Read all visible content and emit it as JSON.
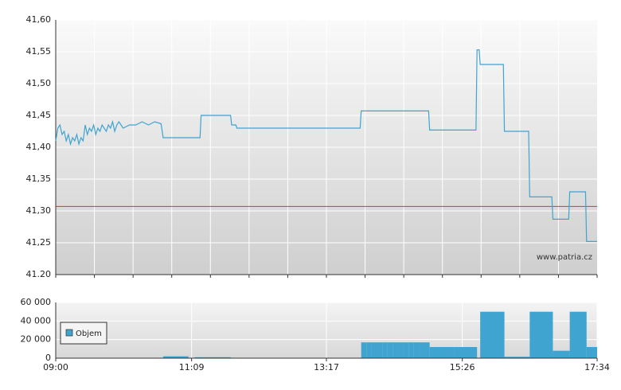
{
  "chart_data": [
    {
      "type": "line",
      "x": [
        "09:00",
        "09:02",
        "09:04",
        "09:06",
        "09:08",
        "09:10",
        "09:12",
        "09:14",
        "09:16",
        "09:18",
        "09:20",
        "09:22",
        "09:24",
        "09:26",
        "09:28",
        "09:30",
        "09:32",
        "09:34",
        "09:36",
        "09:38",
        "09:40",
        "09:42",
        "09:44",
        "09:46",
        "09:48",
        "09:50",
        "09:52",
        "09:54",
        "09:56",
        "09:58",
        "10:00",
        "10:04",
        "10:10",
        "10:16",
        "10:22",
        "10:28",
        "10:34",
        "10:40",
        "10:42",
        "11:17",
        "11:18",
        "11:46",
        "11:47",
        "11:51",
        "11:52",
        "13:49",
        "13:50",
        "14:54",
        "14:55",
        "15:39",
        "15:40",
        "15:42",
        "15:43",
        "16:05",
        "16:06",
        "16:29",
        "16:30",
        "16:51",
        "16:52",
        "17:07",
        "17:08",
        "17:23",
        "17:24",
        "17:34"
      ],
      "series": [
        {
          "color": "#3fa4d0",
          "values": [
            41.41,
            41.43,
            41.435,
            41.42,
            41.425,
            41.41,
            41.42,
            41.405,
            41.415,
            41.41,
            41.42,
            41.405,
            41.415,
            41.41,
            41.435,
            41.42,
            41.43,
            41.425,
            41.435,
            41.42,
            41.43,
            41.425,
            41.435,
            41.43,
            41.425,
            41.435,
            41.43,
            41.44,
            41.425,
            41.435,
            41.44,
            41.43,
            41.435,
            41.435,
            41.44,
            41.435,
            41.44,
            41.437,
            41.415,
            41.415,
            41.45,
            41.45,
            41.435,
            41.435,
            41.43,
            41.43,
            41.457,
            41.457,
            41.427,
            41.427,
            41.553,
            41.553,
            41.53,
            41.53,
            41.425,
            41.425,
            41.322,
            41.322,
            41.287,
            41.287,
            41.33,
            41.33,
            41.252,
            41.252
          ]
        }
      ],
      "xlim": [
        "09:00",
        "17:34"
      ],
      "ylim": [
        41.2,
        41.6
      ],
      "yticks": [
        {
          "value": 41.2,
          "label": "41.20"
        },
        {
          "value": 41.25,
          "label": "41,25"
        },
        {
          "value": 41.3,
          "label": "41,30"
        },
        {
          "value": 41.35,
          "label": "41,35"
        },
        {
          "value": 41.4,
          "label": "41,40"
        },
        {
          "value": 41.45,
          "label": "41,45"
        },
        {
          "value": 41.5,
          "label": "41,50"
        },
        {
          "value": 41.55,
          "label": "41,55"
        },
        {
          "value": 41.6,
          "label": "41,60"
        }
      ],
      "reference_line": {
        "value": 41.307,
        "color": "#e03030"
      },
      "grid": true,
      "watermark": "www.patria.cz"
    },
    {
      "type": "bar",
      "x_start": [
        "10:42",
        "11:12",
        "13:50",
        "13:55",
        "14:00",
        "14:05",
        "14:10",
        "14:15",
        "14:20",
        "14:25",
        "14:30",
        "14:35",
        "14:40",
        "14:45",
        "14:50",
        "14:55",
        "15:18",
        "15:43",
        "16:06",
        "16:30",
        "16:52",
        "17:08",
        "17:24"
      ],
      "x_end": [
        "11:06",
        "11:46",
        "13:55",
        "14:00",
        "14:05",
        "14:10",
        "14:15",
        "14:20",
        "14:25",
        "14:30",
        "14:35",
        "14:40",
        "14:45",
        "14:50",
        "14:55",
        "15:18",
        "15:40",
        "16:06",
        "16:30",
        "16:52",
        "17:08",
        "17:24",
        "17:34"
      ],
      "series": [
        {
          "name": "Objem",
          "color": "#3fa4d0",
          "values": [
            2000,
            1000,
            17000,
            17000,
            17000,
            17000,
            17000,
            17000,
            17000,
            17000,
            17000,
            17000,
            17000,
            17000,
            17000,
            12000,
            12000,
            50000,
            1500,
            50000,
            8000,
            50000,
            12000
          ]
        }
      ],
      "xlim": [
        "09:00",
        "17:34"
      ],
      "xticks": [
        "09:00",
        "11:09",
        "13:17",
        "15:26",
        "17:34"
      ],
      "ylim": [
        0,
        60000
      ],
      "yticks": [
        0,
        {
          "value": 20000,
          "label": "20 000"
        },
        {
          "value": 40000,
          "label": "40 000"
        },
        {
          "value": 60000,
          "label": "60 000"
        }
      ],
      "grid": true,
      "legend": "upper-left"
    }
  ]
}
